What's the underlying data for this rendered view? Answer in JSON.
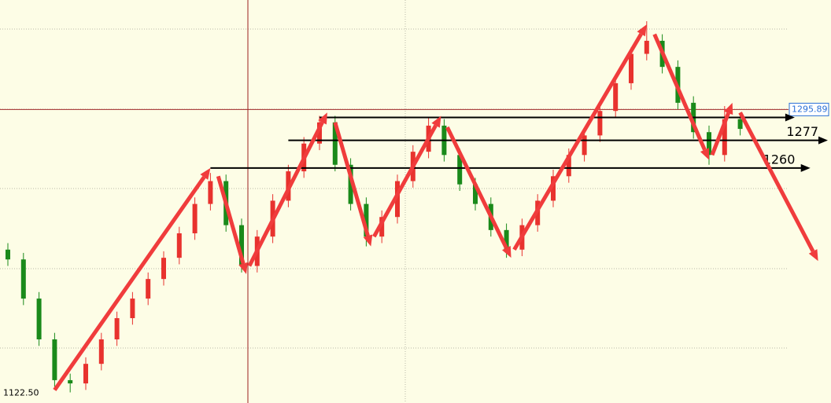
{
  "chart_data": {
    "type": "candlestick",
    "ylim": [
      1116,
      1363
    ],
    "xlim": [
      -0.5,
      53
    ],
    "up_color": "#e8322e",
    "down_color": "#1a8a1a",
    "candles": [
      [
        1210,
        1214,
        1200,
        1204
      ],
      [
        1204,
        1208,
        1176,
        1180
      ],
      [
        1180,
        1184,
        1151,
        1155
      ],
      [
        1155,
        1159,
        1126,
        1130
      ],
      [
        1130,
        1134,
        1122.5,
        1128
      ],
      [
        1128,
        1144,
        1124,
        1140
      ],
      [
        1140,
        1159,
        1136,
        1155
      ],
      [
        1155,
        1172,
        1151,
        1168
      ],
      [
        1168,
        1184,
        1164,
        1180
      ],
      [
        1180,
        1196,
        1176,
        1192
      ],
      [
        1192,
        1209,
        1188,
        1205
      ],
      [
        1205,
        1224,
        1201,
        1220
      ],
      [
        1220,
        1242,
        1216,
        1238
      ],
      [
        1238,
        1257,
        1234,
        1252
      ],
      [
        1252,
        1256,
        1221,
        1225
      ],
      [
        1225,
        1229,
        1196,
        1200
      ],
      [
        1200,
        1222,
        1196,
        1218
      ],
      [
        1218,
        1244,
        1214,
        1240
      ],
      [
        1240,
        1262,
        1236,
        1258
      ],
      [
        1258,
        1279,
        1254,
        1275
      ],
      [
        1275,
        1292,
        1271,
        1288
      ],
      [
        1288,
        1292,
        1258,
        1262
      ],
      [
        1262,
        1266,
        1234,
        1238
      ],
      [
        1238,
        1242,
        1212,
        1218
      ],
      [
        1218,
        1234,
        1214,
        1230
      ],
      [
        1230,
        1256,
        1226,
        1252
      ],
      [
        1252,
        1274,
        1248,
        1270
      ],
      [
        1270,
        1291,
        1266,
        1286
      ],
      [
        1286,
        1290,
        1264,
        1268
      ],
      [
        1268,
        1272,
        1246,
        1250
      ],
      [
        1250,
        1254,
        1234,
        1238
      ],
      [
        1238,
        1242,
        1218,
        1222
      ],
      [
        1222,
        1226,
        1205,
        1210
      ],
      [
        1210,
        1229,
        1206,
        1225
      ],
      [
        1225,
        1244,
        1221,
        1240
      ],
      [
        1240,
        1259,
        1236,
        1255
      ],
      [
        1255,
        1272,
        1251,
        1268
      ],
      [
        1268,
        1284,
        1264,
        1280
      ],
      [
        1280,
        1299,
        1276,
        1295
      ],
      [
        1295,
        1316,
        1291,
        1312
      ],
      [
        1312,
        1334,
        1308,
        1330
      ],
      [
        1330,
        1350,
        1326,
        1338
      ],
      [
        1338,
        1342,
        1318,
        1322
      ],
      [
        1322,
        1326,
        1296,
        1300
      ],
      [
        1300,
        1304,
        1278,
        1282
      ],
      [
        1282,
        1286,
        1262,
        1268
      ],
      [
        1268,
        1298,
        1264,
        1290
      ],
      [
        1290,
        1294,
        1280,
        1284
      ]
    ],
    "arrow_color": "#f03c3c",
    "arrows": [
      {
        "x": [
          3,
          13
        ],
        "y": [
          1124,
          1260
        ]
      },
      {
        "x": [
          13.5,
          15.3
        ],
        "y": [
          1255,
          1195
        ]
      },
      {
        "x": [
          15.5,
          20.5
        ],
        "y": [
          1200,
          1294
        ]
      },
      {
        "x": [
          21,
          23.3
        ],
        "y": [
          1288,
          1212
        ]
      },
      {
        "x": [
          23.5,
          27.8
        ],
        "y": [
          1218,
          1292
        ]
      },
      {
        "x": [
          28.2,
          32.3
        ],
        "y": [
          1285,
          1205
        ]
      },
      {
        "x": [
          32.5,
          41
        ],
        "y": [
          1210,
          1348
        ]
      },
      {
        "x": [
          41.5,
          45
        ],
        "y": [
          1342,
          1265
        ]
      },
      {
        "x": [
          45.2,
          46.5
        ],
        "y": [
          1268,
          1300
        ]
      },
      {
        "x": [
          47,
          52
        ],
        "y": [
          1294,
          1203
        ]
      }
    ],
    "levels": [
      {
        "value": 1291,
        "x": [
          20,
          50.5
        ]
      },
      {
        "value": 1277,
        "x": [
          18,
          53
        ],
        "label": "1277"
      },
      {
        "value": 1260,
        "x": [
          13,
          51.5
        ],
        "label": "1260"
      }
    ],
    "current_price": {
      "value": 1295.89,
      "label": "1295.89"
    },
    "low_price": {
      "value": 1122.5,
      "label": "1122.50"
    }
  }
}
